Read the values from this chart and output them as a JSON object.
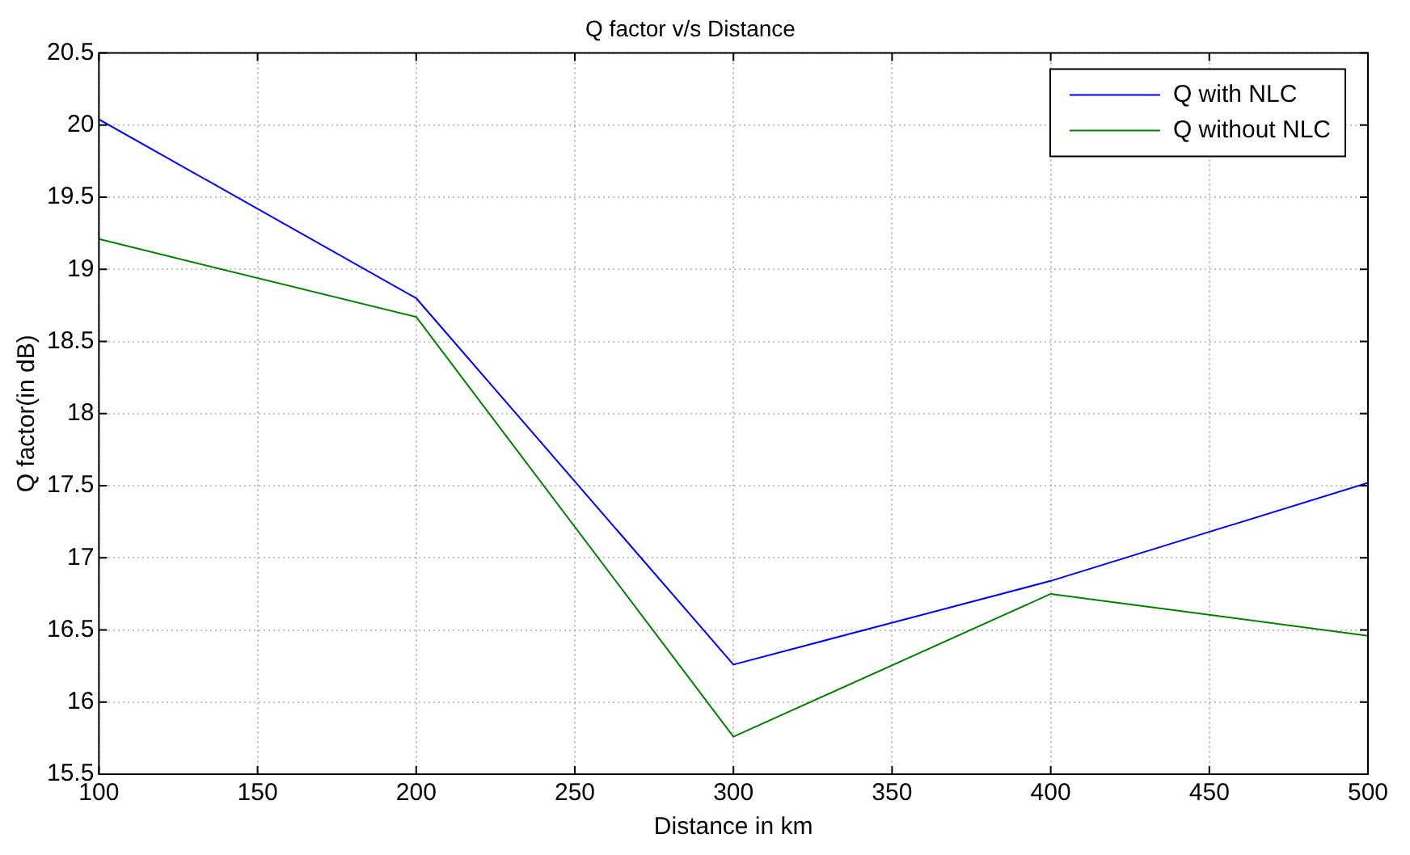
{
  "chart_data": {
    "type": "line",
    "title": "Q factor v/s Distance",
    "xlabel": "Distance in km",
    "ylabel": "Q factor(in dB)",
    "x": [
      100,
      200,
      300,
      400,
      500
    ],
    "series": [
      {
        "name": "Q with NLC",
        "color": "#0000ff",
        "values": [
          20.04,
          18.8,
          16.26,
          16.84,
          17.52
        ]
      },
      {
        "name": "Q without NLC",
        "color": "#008000",
        "values": [
          19.21,
          18.67,
          15.76,
          16.75,
          16.46
        ]
      }
    ],
    "xlim": [
      100,
      500
    ],
    "xticks": [
      100,
      150,
      200,
      250,
      300,
      350,
      400,
      450,
      500
    ],
    "ylim": [
      15.5,
      20.5
    ],
    "yticks": [
      15.5,
      16,
      16.5,
      17,
      17.5,
      18,
      18.5,
      19,
      19.5,
      20,
      20.5
    ],
    "grid": true,
    "legend": "top right",
    "marker": "none",
    "line_style": "solid"
  }
}
